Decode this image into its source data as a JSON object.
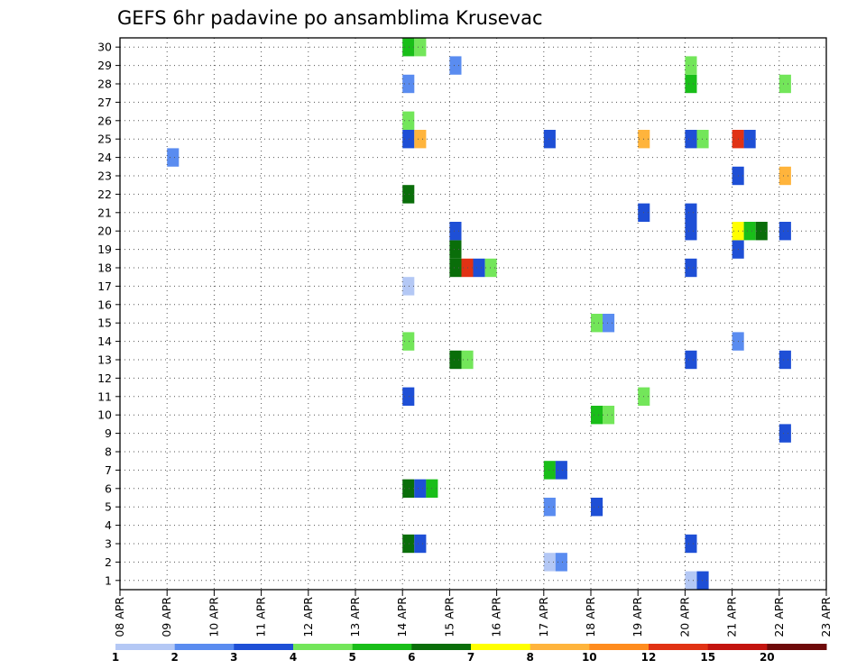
{
  "chart_data": {
    "type": "heatmap",
    "title": "GEFS 6hr padavine po ansamblima Krusevac",
    "x_ticks": [
      "08 APR",
      "09 APR",
      "10 APR",
      "11 APR",
      "12 APR",
      "13 APR",
      "14 APR",
      "15 APR",
      "16 APR",
      "17 APR",
      "18 APR",
      "19 APR",
      "20 APR",
      "21 APR",
      "22 APR",
      "23 APR"
    ],
    "y_ticks": [
      "1",
      "2",
      "3",
      "4",
      "5",
      "6",
      "7",
      "8",
      "9",
      "10",
      "11",
      "12",
      "13",
      "14",
      "15",
      "16",
      "17",
      "18",
      "19",
      "20",
      "21",
      "22",
      "23",
      "24",
      "25",
      "26",
      "27",
      "28",
      "29",
      "30"
    ],
    "xlim": [
      "08 APR",
      "23 APR"
    ],
    "ylim": [
      0.5,
      30.5
    ],
    "grid": true,
    "colorbar": {
      "levels": [
        "1",
        "2",
        "3",
        "4",
        "5",
        "6",
        "7",
        "8",
        "10",
        "12",
        "15",
        "20"
      ],
      "colors": [
        "#b4c8f5",
        "#5a8cf0",
        "#1e4fd6",
        "#73e65a",
        "#19be19",
        "#0a6e0a",
        "#ffff00",
        "#ffb43c",
        "#ff8c1e",
        "#e13214",
        "#c3140f",
        "#6e0a0a"
      ]
    },
    "cells": [
      {
        "m": 1,
        "d": "20 APR",
        "c": 0
      },
      {
        "m": 1,
        "d": "20 APR",
        "c": 2
      },
      {
        "m": 2,
        "d": "17 APR",
        "c": 0
      },
      {
        "m": 2,
        "d": "17 APR",
        "c": 1
      },
      {
        "m": 3,
        "d": "14 APR",
        "c": 5
      },
      {
        "m": 3,
        "d": "14 APR",
        "c": 2
      },
      {
        "m": 3,
        "d": "20 APR",
        "c": 2
      },
      {
        "m": 5,
        "d": "17 APR",
        "c": 1
      },
      {
        "m": 5,
        "d": "18 APR",
        "c": 2
      },
      {
        "m": 6,
        "d": "14 APR",
        "c": 5
      },
      {
        "m": 6,
        "d": "14 APR",
        "c": 2
      },
      {
        "m": 6,
        "d": "14 APR",
        "c": 4
      },
      {
        "m": 7,
        "d": "17 APR",
        "c": 4
      },
      {
        "m": 7,
        "d": "17 APR",
        "c": 2
      },
      {
        "m": 9,
        "d": "22 APR",
        "c": 2
      },
      {
        "m": 10,
        "d": "18 APR",
        "c": 4
      },
      {
        "m": 10,
        "d": "18 APR",
        "c": 3
      },
      {
        "m": 11,
        "d": "14 APR",
        "c": 2
      },
      {
        "m": 11,
        "d": "19 APR",
        "c": 3
      },
      {
        "m": 13,
        "d": "15 APR",
        "c": 5
      },
      {
        "m": 13,
        "d": "15 APR",
        "c": 3
      },
      {
        "m": 13,
        "d": "20 APR",
        "c": 2
      },
      {
        "m": 13,
        "d": "22 APR",
        "c": 2
      },
      {
        "m": 14,
        "d": "14 APR",
        "c": 3
      },
      {
        "m": 14,
        "d": "21 APR",
        "c": 1
      },
      {
        "m": 15,
        "d": "18 APR",
        "c": 3
      },
      {
        "m": 15,
        "d": "18 APR",
        "c": 1
      },
      {
        "m": 17,
        "d": "14 APR",
        "c": 0
      },
      {
        "m": 18,
        "d": "15 APR",
        "c": 5
      },
      {
        "m": 18,
        "d": "15 APR",
        "c": 9
      },
      {
        "m": 18,
        "d": "15 APR",
        "c": 2
      },
      {
        "m": 18,
        "d": "15 APR",
        "c": 3
      },
      {
        "m": 18,
        "d": "20 APR",
        "c": 2
      },
      {
        "m": 19,
        "d": "15 APR",
        "c": 5
      },
      {
        "m": 19,
        "d": "21 APR",
        "c": 2
      },
      {
        "m": 20,
        "d": "15 APR",
        "c": 2
      },
      {
        "m": 20,
        "d": "20 APR",
        "c": 2
      },
      {
        "m": 20,
        "d": "21 APR",
        "c": 6
      },
      {
        "m": 20,
        "d": "21 APR",
        "c": 4
      },
      {
        "m": 20,
        "d": "21 APR",
        "c": 5
      },
      {
        "m": 20,
        "d": "22 APR",
        "c": 2
      },
      {
        "m": 21,
        "d": "19 APR",
        "c": 2
      },
      {
        "m": 21,
        "d": "20 APR",
        "c": 2
      },
      {
        "m": 22,
        "d": "14 APR",
        "c": 5
      },
      {
        "m": 23,
        "d": "21 APR",
        "c": 2
      },
      {
        "m": 23,
        "d": "22 APR",
        "c": 7
      },
      {
        "m": 24,
        "d": "09 APR",
        "c": 1
      },
      {
        "m": 25,
        "d": "14 APR",
        "c": 2
      },
      {
        "m": 25,
        "d": "14 APR",
        "c": 7
      },
      {
        "m": 25,
        "d": "17 APR",
        "c": 2
      },
      {
        "m": 25,
        "d": "19 APR",
        "c": 7
      },
      {
        "m": 25,
        "d": "20 APR",
        "c": 2
      },
      {
        "m": 25,
        "d": "20 APR",
        "c": 3
      },
      {
        "m": 25,
        "d": "21 APR",
        "c": 9
      },
      {
        "m": 25,
        "d": "21 APR",
        "c": 2
      },
      {
        "m": 26,
        "d": "14 APR",
        "c": 3
      },
      {
        "m": 28,
        "d": "14 APR",
        "c": 1
      },
      {
        "m": 28,
        "d": "20 APR",
        "c": 4
      },
      {
        "m": 28,
        "d": "22 APR",
        "c": 3
      },
      {
        "m": 29,
        "d": "15 APR",
        "c": 1
      },
      {
        "m": 29,
        "d": "20 APR",
        "c": 3
      },
      {
        "m": 30,
        "d": "14 APR",
        "c": 4
      },
      {
        "m": 30,
        "d": "14 APR",
        "c": 3
      }
    ]
  }
}
